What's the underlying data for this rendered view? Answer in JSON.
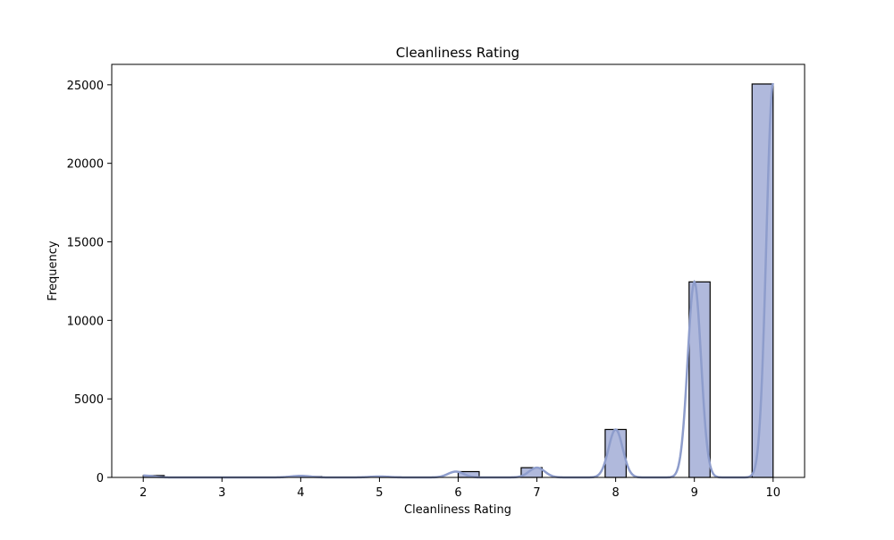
{
  "chart_data": {
    "type": "bar",
    "subtype": "histogram-with-kde",
    "title": "Cleanliness Rating",
    "xlabel": "Cleanliness Rating",
    "ylabel": "Frequency",
    "xlim": [
      1.6,
      10.4
    ],
    "ylim": [
      0,
      26300
    ],
    "xticks": [
      2,
      3,
      4,
      5,
      6,
      7,
      8,
      9,
      10
    ],
    "yticks": [
      0,
      5000,
      10000,
      15000,
      20000,
      25000
    ],
    "grid": false,
    "bin_width": 0.2667,
    "bins": [
      {
        "start": 2.0,
        "value": 120
      },
      {
        "start": 4.0,
        "value": 60
      },
      {
        "start": 5.0,
        "value": 30
      },
      {
        "start": 6.0,
        "value": 370
      },
      {
        "start": 6.8,
        "value": 620
      },
      {
        "start": 7.867,
        "value": 3050
      },
      {
        "start": 8.933,
        "value": 12450
      },
      {
        "start": 9.733,
        "value": 25050
      }
    ],
    "kde": {
      "peaks": [
        {
          "x": 2.0,
          "y": 120,
          "sigma": 0.12
        },
        {
          "x": 4.0,
          "y": 100,
          "sigma": 0.12
        },
        {
          "x": 5.0,
          "y": 60,
          "sigma": 0.12
        },
        {
          "x": 5.97,
          "y": 370,
          "sigma": 0.1
        },
        {
          "x": 7.0,
          "y": 620,
          "sigma": 0.1
        },
        {
          "x": 8.0,
          "y": 3050,
          "sigma": 0.09
        },
        {
          "x": 9.0,
          "y": 12450,
          "sigma": 0.085
        },
        {
          "x": 10.0,
          "y": 25100,
          "sigma": 0.085
        }
      ]
    },
    "colors": {
      "bar_fill": "#b0b9dc",
      "bar_edge": "#000000",
      "kde_line": "#8e9dcc",
      "axes": "#000000"
    }
  }
}
